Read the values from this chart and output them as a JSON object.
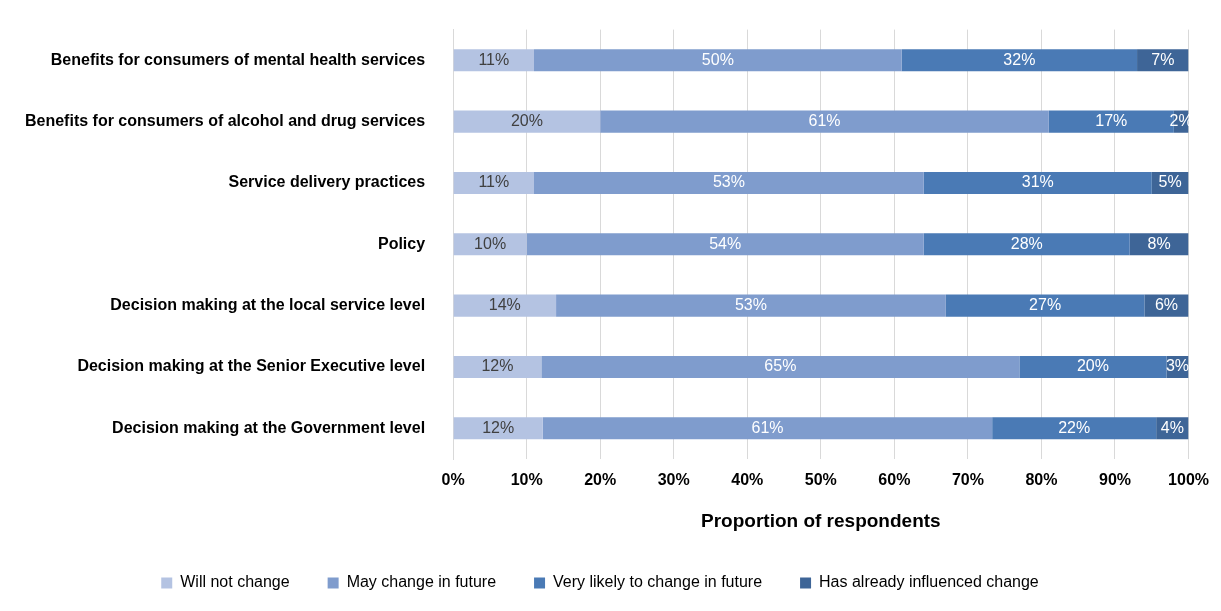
{
  "chart_data": {
    "type": "bar",
    "orientation": "horizontal",
    "stacked": true,
    "xlabel": "Proportion of respondents",
    "categories": [
      "Benefits for consumers of mental health services",
      "Benefits for consumers of alcohol and drug services",
      "Service delivery practices",
      "Policy",
      "Decision making at the local service level",
      "Decision making at the Senior Executive level",
      "Decision making at the Government level"
    ],
    "series": [
      {
        "name": "Will not change",
        "color": "#b4c3e2",
        "values": [
          11,
          20,
          11,
          10,
          14,
          12,
          12.2
        ],
        "value_labels": [
          "11%",
          "20%",
          "11%",
          "10%",
          "14%",
          "12%",
          "12%"
        ]
      },
      {
        "name": "May change in future",
        "color": "#7f9ccd",
        "values": [
          50,
          61,
          53,
          54,
          53,
          65,
          61.1
        ],
        "value_labels": [
          "50%",
          "61%",
          "53%",
          "54%",
          "53%",
          "65%",
          "61%"
        ]
      },
      {
        "name": "Very likely to change in future",
        "color": "#4a7ab5",
        "values": [
          32,
          17,
          31,
          28,
          27,
          20,
          22.3
        ],
        "value_labels": [
          "32%",
          "17%",
          "31%",
          "28%",
          "27%",
          "20%",
          "22%"
        ]
      },
      {
        "name": "Has already influenced change",
        "color": "#3e6597",
        "values": [
          7,
          2,
          5,
          8,
          6,
          3,
          4.4
        ],
        "value_labels": [
          "7%",
          "2%",
          "5%",
          "8%",
          "6%",
          "3%",
          "4%"
        ]
      }
    ],
    "xlim": [
      0,
      100
    ],
    "xticks": [
      {
        "value": 0,
        "label": "0%"
      },
      {
        "value": 10,
        "label": "10%"
      },
      {
        "value": 20,
        "label": "20%"
      },
      {
        "value": 30,
        "label": "30%"
      },
      {
        "value": 40,
        "label": "40%"
      },
      {
        "value": 50,
        "label": "50%"
      },
      {
        "value": 60,
        "label": "60%"
      },
      {
        "value": 70,
        "label": "70%"
      },
      {
        "value": 80,
        "label": "80%"
      },
      {
        "value": 90,
        "label": "90%"
      },
      {
        "value": 100,
        "label": "100%"
      }
    ],
    "grid": "x",
    "legend": "bottom"
  }
}
